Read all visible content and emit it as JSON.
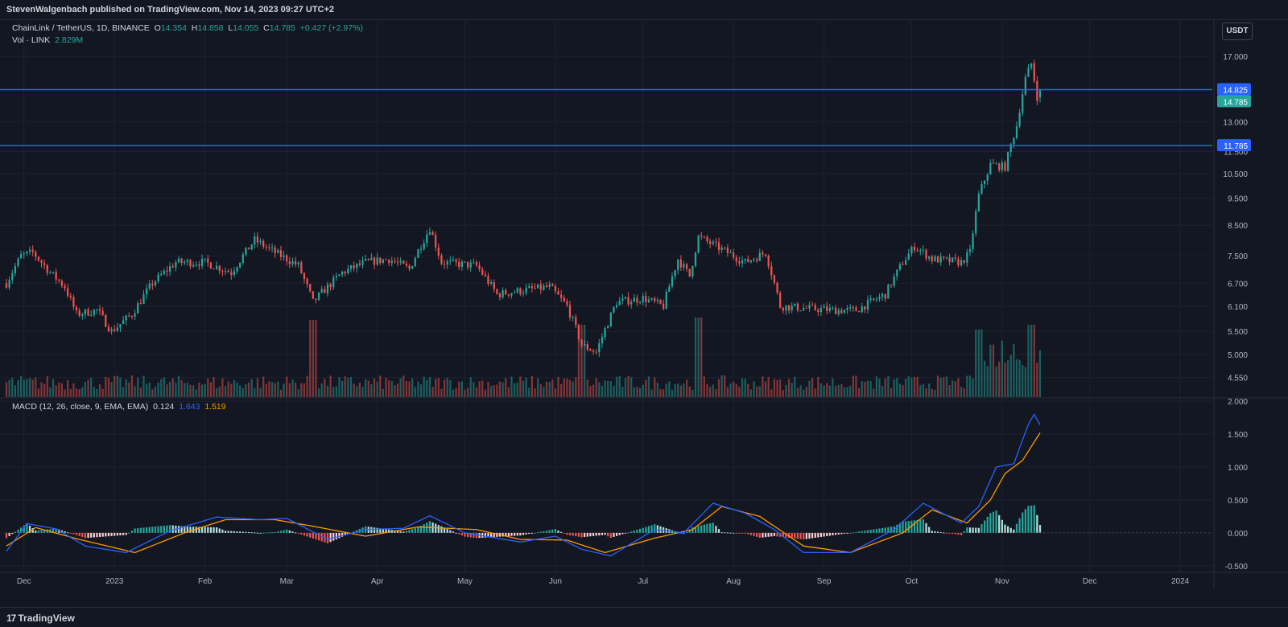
{
  "header": {
    "publisher_text": "StevenWalgenbach published on TradingView.com, Nov 14, 2023 09:27 UTC+2"
  },
  "footer": {
    "brand": "TradingView",
    "logo_mark": "17"
  },
  "legend": {
    "symbol": "ChainLink / TetherUS, 1D, BINANCE",
    "o_label": "O",
    "o_value": "14.354",
    "h_label": "H",
    "h_value": "14.858",
    "l_label": "L",
    "l_value": "14.055",
    "c_label": "C",
    "c_value": "14.785",
    "change": "+0.427 (+2.97%)",
    "vol_label": "Vol · LINK",
    "vol_value": "2.829M",
    "macd_label": "MACD (12, 26, close, 9, EMA, EMA)",
    "macd_hist": "0.124",
    "macd_line": "1.643",
    "macd_signal": "1.519"
  },
  "currency_button": "USDT",
  "colors": {
    "up": "#26a69a",
    "down": "#ef5350",
    "macd": "#2962ff",
    "signal": "#ff9800",
    "hline": "#2962ff"
  },
  "chart_data": {
    "type": "candlestick",
    "price_axis": {
      "scale": "log",
      "ticks": [
        "17.000",
        "13.000",
        "11.500",
        "10.500",
        "9.500",
        "8.500",
        "7.500",
        "6.700",
        "6.100",
        "5.500",
        "5.000",
        "4.550"
      ],
      "range": [
        4.2,
        18.4
      ]
    },
    "horizontal_lines": [
      {
        "value": 14.825,
        "label": "14.825"
      },
      {
        "value": 11.785,
        "label": "11.785"
      }
    ],
    "last_price": {
      "value": 14.785,
      "label": "14.785"
    },
    "time_axis_labels": [
      "Dec",
      "2023",
      "Feb",
      "Mar",
      "Apr",
      "May",
      "Jun",
      "Jul",
      "Aug",
      "Sep",
      "Oct",
      "Nov",
      "Dec",
      "2024"
    ],
    "time_axis_dates": [
      "2022-12-01",
      "2023-01-01",
      "2023-02-01",
      "2023-03-01",
      "2023-04-01",
      "2023-05-01",
      "2023-06-01",
      "2023-07-01",
      "2023-08-01",
      "2023-09-01",
      "2023-10-01",
      "2023-11-01",
      "2023-12-01",
      "2024-01-01"
    ],
    "time_range": [
      "2022-11-25",
      "2024-01-12"
    ],
    "close_anchors": [
      [
        "2022-11-25",
        6.7
      ],
      [
        "2022-11-30",
        7.5
      ],
      [
        "2022-12-04",
        7.6
      ],
      [
        "2022-12-10",
        7.0
      ],
      [
        "2022-12-15",
        6.6
      ],
      [
        "2022-12-19",
        5.9
      ],
      [
        "2022-12-26",
        6.0
      ],
      [
        "2022-12-31",
        5.5
      ],
      [
        "2023-01-07",
        5.9
      ],
      [
        "2023-01-14",
        6.7
      ],
      [
        "2023-01-22",
        7.3
      ],
      [
        "2023-02-01",
        7.3
      ],
      [
        "2023-02-10",
        7.0
      ],
      [
        "2023-02-18",
        8.0
      ],
      [
        "2023-02-25",
        7.6
      ],
      [
        "2023-03-05",
        7.2
      ],
      [
        "2023-03-10",
        6.2
      ],
      [
        "2023-03-20",
        7.0
      ],
      [
        "2023-03-28",
        7.3
      ],
      [
        "2023-04-05",
        7.4
      ],
      [
        "2023-04-12",
        7.1
      ],
      [
        "2023-04-19",
        8.4
      ],
      [
        "2023-04-23",
        7.3
      ],
      [
        "2023-05-05",
        7.2
      ],
      [
        "2023-05-12",
        6.4
      ],
      [
        "2023-05-20",
        6.5
      ],
      [
        "2023-05-30",
        6.6
      ],
      [
        "2023-06-05",
        6.1
      ],
      [
        "2023-06-10",
        5.2
      ],
      [
        "2023-06-15",
        5.05
      ],
      [
        "2023-06-22",
        6.2
      ],
      [
        "2023-07-01",
        6.3
      ],
      [
        "2023-07-08",
        6.1
      ],
      [
        "2023-07-13",
        7.4
      ],
      [
        "2023-07-17",
        6.9
      ],
      [
        "2023-07-20",
        8.1
      ],
      [
        "2023-07-28",
        7.7
      ],
      [
        "2023-08-05",
        7.3
      ],
      [
        "2023-08-12",
        7.6
      ],
      [
        "2023-08-17",
        6.1
      ],
      [
        "2023-08-25",
        6.05
      ],
      [
        "2023-09-05",
        6.0
      ],
      [
        "2023-09-12",
        6.0
      ],
      [
        "2023-09-22",
        6.4
      ],
      [
        "2023-09-28",
        7.3
      ],
      [
        "2023-10-02",
        7.8
      ],
      [
        "2023-10-08",
        7.4
      ],
      [
        "2023-10-18",
        7.3
      ],
      [
        "2023-10-21",
        7.6
      ],
      [
        "2023-10-24",
        9.6
      ],
      [
        "2023-10-28",
        10.9
      ],
      [
        "2023-11-02",
        10.8
      ],
      [
        "2023-11-06",
        12.8
      ],
      [
        "2023-11-09",
        15.5
      ],
      [
        "2023-11-11",
        16.5
      ],
      [
        "2023-11-13",
        14.4
      ],
      [
        "2023-11-14",
        14.785
      ]
    ],
    "volume_spikes": [
      [
        "2023-03-10",
        3.2
      ],
      [
        "2023-06-10",
        3.0
      ],
      [
        "2023-07-20",
        3.3
      ],
      [
        "2023-10-24",
        2.8
      ],
      [
        "2023-11-11",
        3.0
      ]
    ],
    "macd": {
      "axis_ticks": [
        "2.000",
        "1.500",
        "1.000",
        "0.500",
        "0.000",
        "-0.500"
      ],
      "range": [
        -0.6,
        2.05
      ],
      "line_anchors": [
        [
          "2022-11-25",
          -0.28
        ],
        [
          "2022-12-02",
          0.14
        ],
        [
          "2022-12-12",
          0.06
        ],
        [
          "2022-12-22",
          -0.2
        ],
        [
          "2023-01-05",
          -0.3
        ],
        [
          "2023-01-20",
          0.03
        ],
        [
          "2023-02-05",
          0.24
        ],
        [
          "2023-02-20",
          0.2
        ],
        [
          "2023-03-01",
          0.22
        ],
        [
          "2023-03-15",
          -0.1
        ],
        [
          "2023-03-28",
          0.05
        ],
        [
          "2023-04-10",
          0.07
        ],
        [
          "2023-04-19",
          0.26
        ],
        [
          "2023-05-01",
          0.0
        ],
        [
          "2023-05-20",
          -0.14
        ],
        [
          "2023-06-01",
          -0.05
        ],
        [
          "2023-06-10",
          -0.25
        ],
        [
          "2023-06-20",
          -0.35
        ],
        [
          "2023-07-05",
          0.05
        ],
        [
          "2023-07-15",
          0.0
        ],
        [
          "2023-07-25",
          0.45
        ],
        [
          "2023-08-05",
          0.3
        ],
        [
          "2023-08-15",
          0.05
        ],
        [
          "2023-08-25",
          -0.3
        ],
        [
          "2023-09-10",
          -0.3
        ],
        [
          "2023-09-25",
          0.05
        ],
        [
          "2023-10-05",
          0.45
        ],
        [
          "2023-10-18",
          0.15
        ],
        [
          "2023-10-24",
          0.4
        ],
        [
          "2023-10-30",
          1.0
        ],
        [
          "2023-11-05",
          1.05
        ],
        [
          "2023-11-10",
          1.65
        ],
        [
          "2023-11-12",
          1.8
        ],
        [
          "2023-11-14",
          1.64
        ]
      ],
      "signal_anchors": [
        [
          "2022-11-25",
          -0.2
        ],
        [
          "2022-12-05",
          0.08
        ],
        [
          "2022-12-20",
          -0.1
        ],
        [
          "2023-01-08",
          -0.3
        ],
        [
          "2023-01-25",
          0.0
        ],
        [
          "2023-02-08",
          0.2
        ],
        [
          "2023-02-25",
          0.2
        ],
        [
          "2023-03-10",
          0.1
        ],
        [
          "2023-03-28",
          -0.05
        ],
        [
          "2023-04-15",
          0.09
        ],
        [
          "2023-05-05",
          0.05
        ],
        [
          "2023-05-20",
          -0.1
        ],
        [
          "2023-06-05",
          -0.11
        ],
        [
          "2023-06-18",
          -0.3
        ],
        [
          "2023-07-05",
          -0.08
        ],
        [
          "2023-07-18",
          0.05
        ],
        [
          "2023-07-28",
          0.4
        ],
        [
          "2023-08-10",
          0.25
        ],
        [
          "2023-08-25",
          -0.2
        ],
        [
          "2023-09-10",
          -0.3
        ],
        [
          "2023-09-28",
          0.0
        ],
        [
          "2023-10-08",
          0.35
        ],
        [
          "2023-10-20",
          0.15
        ],
        [
          "2023-10-28",
          0.5
        ],
        [
          "2023-11-02",
          0.9
        ],
        [
          "2023-11-08",
          1.1
        ],
        [
          "2023-11-14",
          1.52
        ]
      ]
    }
  }
}
